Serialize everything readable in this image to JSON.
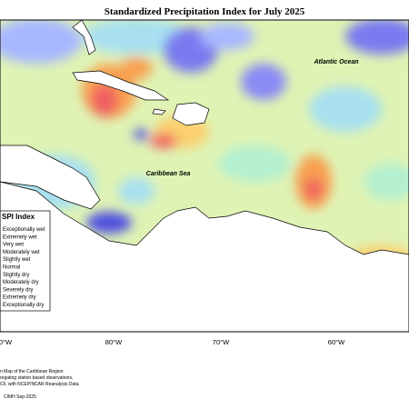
{
  "title": "Standardized Precipitation Index for July 2025",
  "labels": {
    "atlantic": "Atlantic Ocean",
    "caribbean": "Caribbean Sea"
  },
  "longitudes": [
    "0°W",
    "80°W",
    "70°W",
    "60°W"
  ],
  "legend": {
    "title": "SPI Index",
    "items": [
      "Exceptionally wet",
      "Extremely wet",
      "Very wet",
      "Moderately wet",
      "Slightly wet",
      "Normal",
      "Slightly dry",
      "Moderately dry",
      "Severely dry",
      "Extremely dry",
      "Exceptionally dry"
    ]
  },
  "footnote": [
    "n Map of the Caribbean Region",
    "regating station based observations,",
    "CF, with NCEP/NCAR Reanalysis Data."
  ],
  "credit": "CIMH Sep-2025"
}
